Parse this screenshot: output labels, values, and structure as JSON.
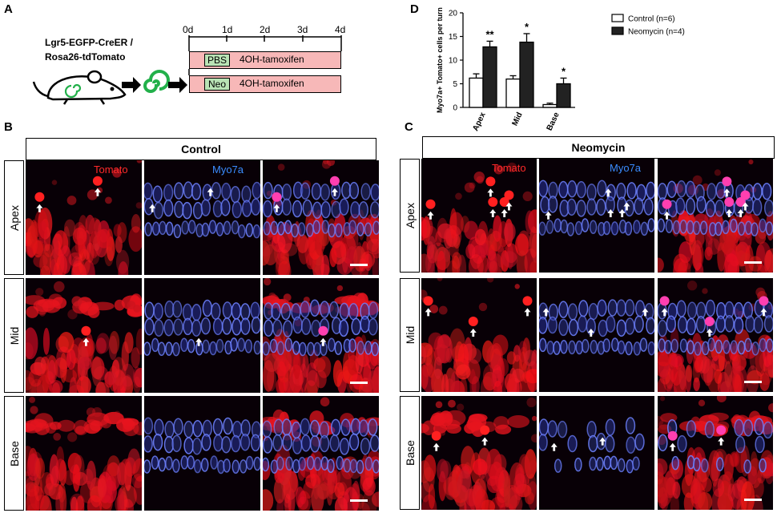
{
  "panels": {
    "A": {
      "label": "A",
      "mouse_line1": "Lgr5-EGFP-CreER /",
      "mouse_line2": "Rosa26-tdTomato",
      "timeline_ticks": [
        "0d",
        "1d",
        "2d",
        "3d",
        "4d"
      ],
      "row1_box": "PBS",
      "row1_text": "4OH-tamoxifen",
      "row2_box": "Neo",
      "row2_text": "4OH-tamoxifen",
      "colors": {
        "bar": "#f7b8b8",
        "box": "#b9e3b5",
        "spiral": "#22b04a"
      }
    },
    "B": {
      "label": "B",
      "title": "Control",
      "rows": [
        "Apex",
        "Mid",
        "Base"
      ],
      "channels": [
        "Tomato",
        "Myo7a"
      ]
    },
    "C": {
      "label": "C",
      "title": "Neomycin",
      "rows": [
        "Apex",
        "Mid",
        "Base"
      ],
      "channels": [
        "Tomato",
        "Myo7a"
      ]
    },
    "D": {
      "label": "D"
    }
  },
  "chart_data": {
    "type": "bar",
    "ylabel": "Myo7a+ Tomato+ cells per turn",
    "ylim": [
      0,
      20
    ],
    "yticks": [
      "0",
      "5",
      "10",
      "15",
      "20"
    ],
    "categories": [
      "Apex",
      "Mid",
      "Base"
    ],
    "series": [
      {
        "name": "Control (n=6)",
        "values": [
          6.2,
          6.0,
          0.6
        ],
        "errors": [
          0.9,
          0.7,
          0.3
        ],
        "color": "#ffffff"
      },
      {
        "name": "Neomycin (n=4)",
        "values": [
          12.8,
          13.8,
          5.0
        ],
        "errors": [
          1.2,
          1.8,
          1.2
        ],
        "color": "#222222"
      }
    ],
    "significance": [
      "**",
      "*",
      "*"
    ],
    "legend": "top-right"
  }
}
